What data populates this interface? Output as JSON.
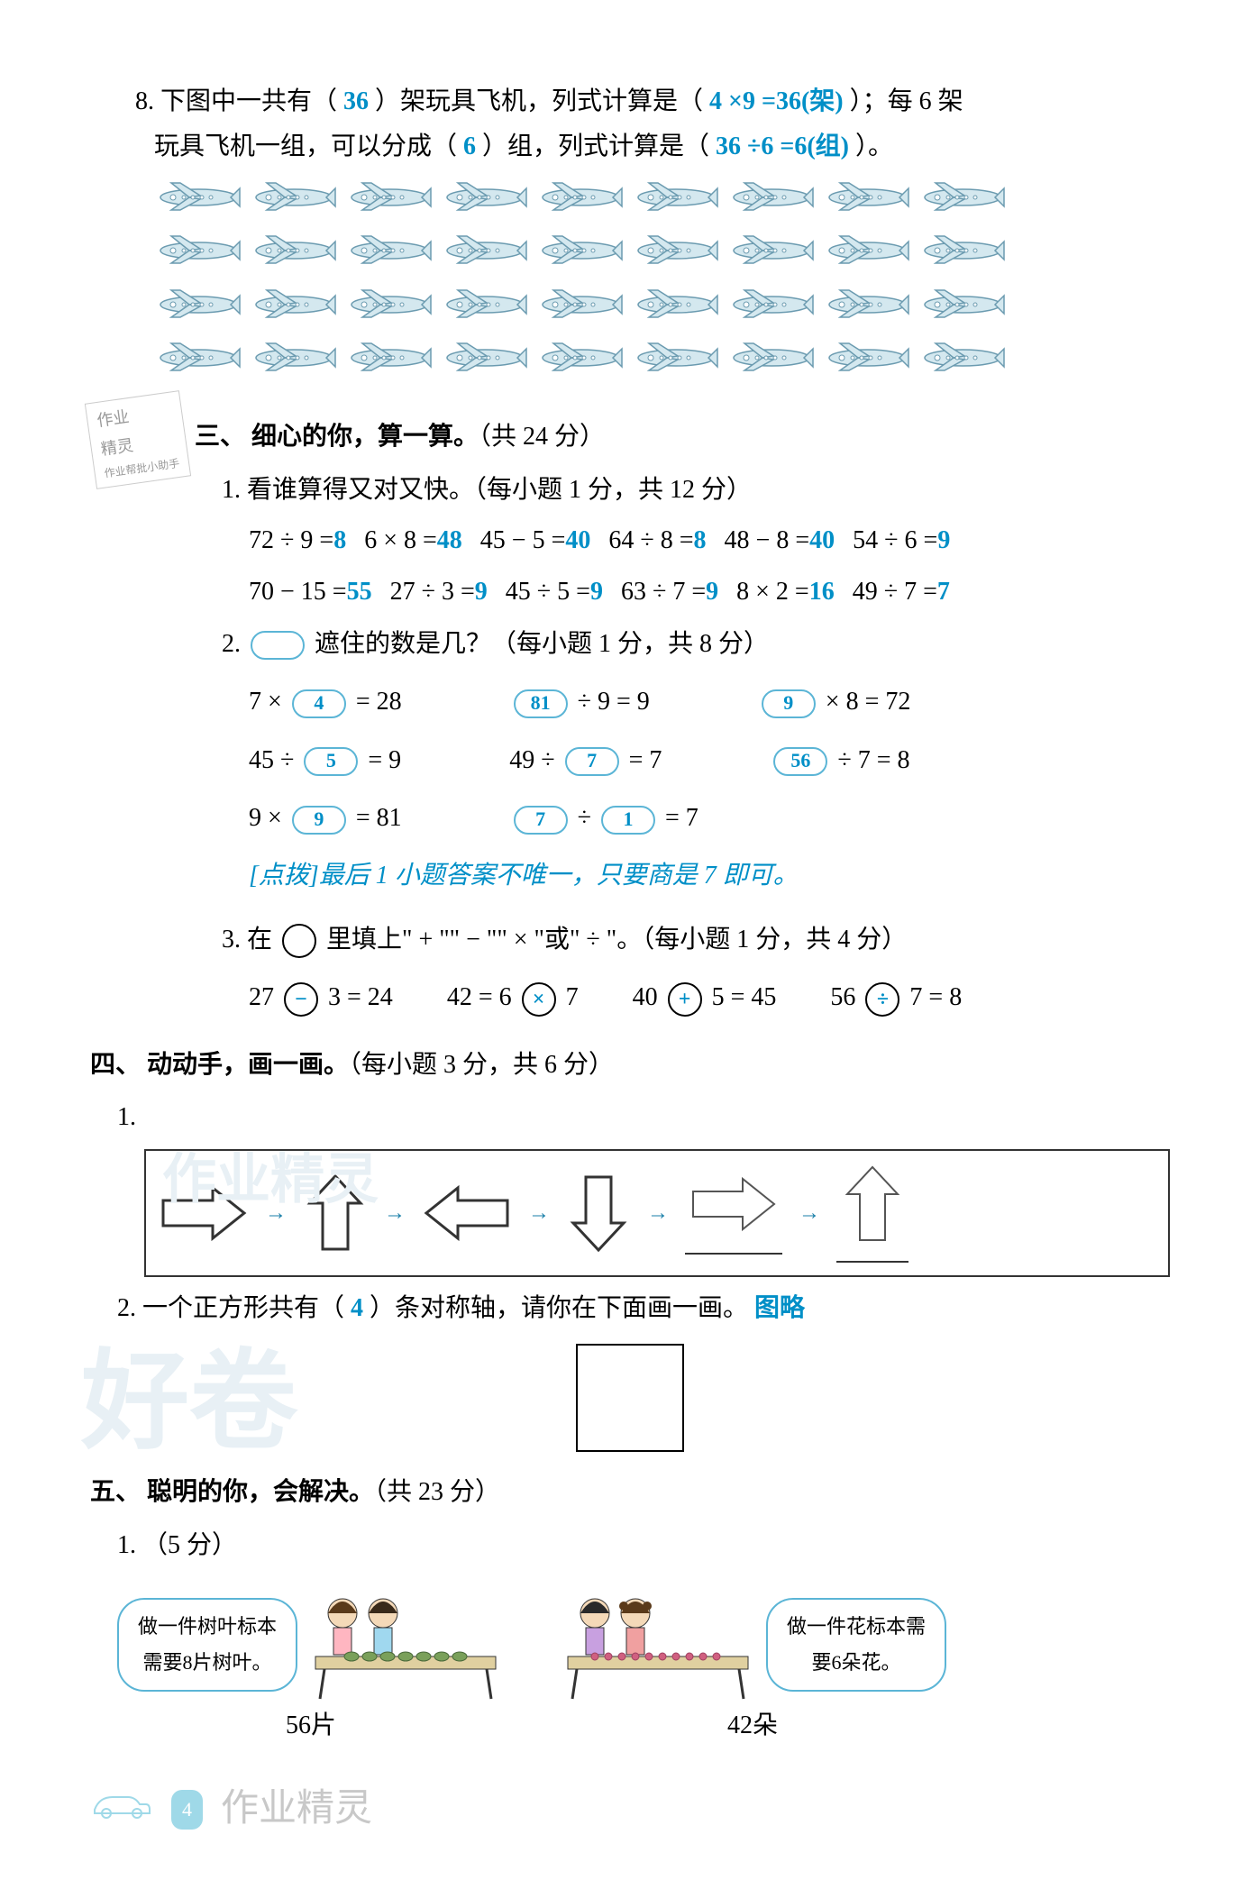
{
  "q8": {
    "num": "8.",
    "text1": "下图中一共有（",
    "ans1": "36",
    "text2": "）架玩具飞机，列式计算是（",
    "ans2": "4 ×9 =36(架)",
    "text3": "）；每 6 架",
    "text4": "玩具飞机一组，可以分成（",
    "ans3": "6",
    "text5": "）组，列式计算是（",
    "ans4": "36 ÷6 =6(组)",
    "text6": "）。"
  },
  "planes": {
    "rows": 4,
    "cols": 9,
    "stroke": "#6b9bb0",
    "fill": "#d4e8ef"
  },
  "tag": {
    "l1": "作业",
    "l2": "精灵",
    "l3": "作业帮批小助手"
  },
  "sec3": {
    "title": "三、 细心的你，算一算。",
    "points": "（共 24 分）",
    "q1_num": "1.",
    "q1_text": "看谁算得又对又快。（每小题 1 分，共 12 分）",
    "row1": [
      {
        "eq": "72 ÷ 9 =",
        "ans": "8"
      },
      {
        "eq": "6 × 8 =",
        "ans": "48"
      },
      {
        "eq": "45 − 5 =",
        "ans": "40"
      },
      {
        "eq": "64 ÷ 8 =",
        "ans": "8"
      },
      {
        "eq": "48 − 8 =",
        "ans": "40"
      },
      {
        "eq": "54 ÷ 6 =",
        "ans": "9"
      }
    ],
    "row2": [
      {
        "eq": "70 − 15 =",
        "ans": "55"
      },
      {
        "eq": "27 ÷ 3 =",
        "ans": "9"
      },
      {
        "eq": "45 ÷ 5 =",
        "ans": "9"
      },
      {
        "eq": "63 ÷ 7 =",
        "ans": "9"
      },
      {
        "eq": "8 × 2 =",
        "ans": "16"
      },
      {
        "eq": "49 ÷ 7 =",
        "ans": "7"
      }
    ],
    "q2_num": "2.",
    "q2_text": "遮住的数是几？（每小题 1 分，共 8 分）",
    "q2_rows": [
      [
        {
          "pre": "7 × ",
          "cloud": "4",
          "post": " = 28"
        },
        {
          "pre": "",
          "cloud": "81",
          "post": " ÷ 9 = 9"
        },
        {
          "pre": "",
          "cloud": "9",
          "post": " × 8 = 72"
        }
      ],
      [
        {
          "pre": "45 ÷ ",
          "cloud": "5",
          "post": " = 9"
        },
        {
          "pre": "49 ÷ ",
          "cloud": "7",
          "post": " = 7"
        },
        {
          "pre": "",
          "cloud": "56",
          "post": " ÷ 7 = 8"
        }
      ],
      [
        {
          "pre": "9 × ",
          "cloud": "9",
          "post": " = 81"
        },
        {
          "pre": "",
          "cloud": "7",
          "mid": " ÷ ",
          "cloud2": "1",
          "post": " = 7"
        }
      ]
    ],
    "tip": "[点拨]最后 1 小题答案不唯一，只要商是 7 即可。",
    "q3_num": "3.",
    "q3_text": "在 ",
    "q3_text2": " 里填上\" + \"\" − \"\" × \"或\" ÷ \"。（每小题 1 分，共 4 分）",
    "q3_items": [
      {
        "pre": "27 ",
        "op": "−",
        "post": " 3 = 24"
      },
      {
        "pre": "42 = 6 ",
        "op": "×",
        "post": " 7"
      },
      {
        "pre": "40 ",
        "op": "+",
        "post": " 5 = 45"
      },
      {
        "pre": "56 ",
        "op": "÷",
        "post": " 7 = 8"
      }
    ]
  },
  "sec4": {
    "title": "四、 动动手，画一画。",
    "points": "（每小题 3 分，共 6 分）",
    "q1_num": "1.",
    "q2_num": "2.",
    "q2_text1": "一个正方形共有（",
    "q2_ans": "4",
    "q2_text2": "）条对称轴，请你在下面画一画。",
    "q2_extra": "图略",
    "arrows": {
      "stroke": "#333333",
      "answer_stroke": "#555555"
    }
  },
  "sec5": {
    "title": "五、 聪明的你，会解决。",
    "points": "（共 23 分）",
    "q1_num": "1.",
    "q1_pts": "（5 分）",
    "bubble1": "做一件树叶标本需要8片树叶。",
    "label1": "56片",
    "bubble2": "做一件花标本需要6朵花。",
    "label2": "42朵"
  },
  "footer": {
    "page": "4",
    "wm": "作业精灵"
  },
  "watermark_big": "好卷",
  "watermark_text": "作业精灵"
}
